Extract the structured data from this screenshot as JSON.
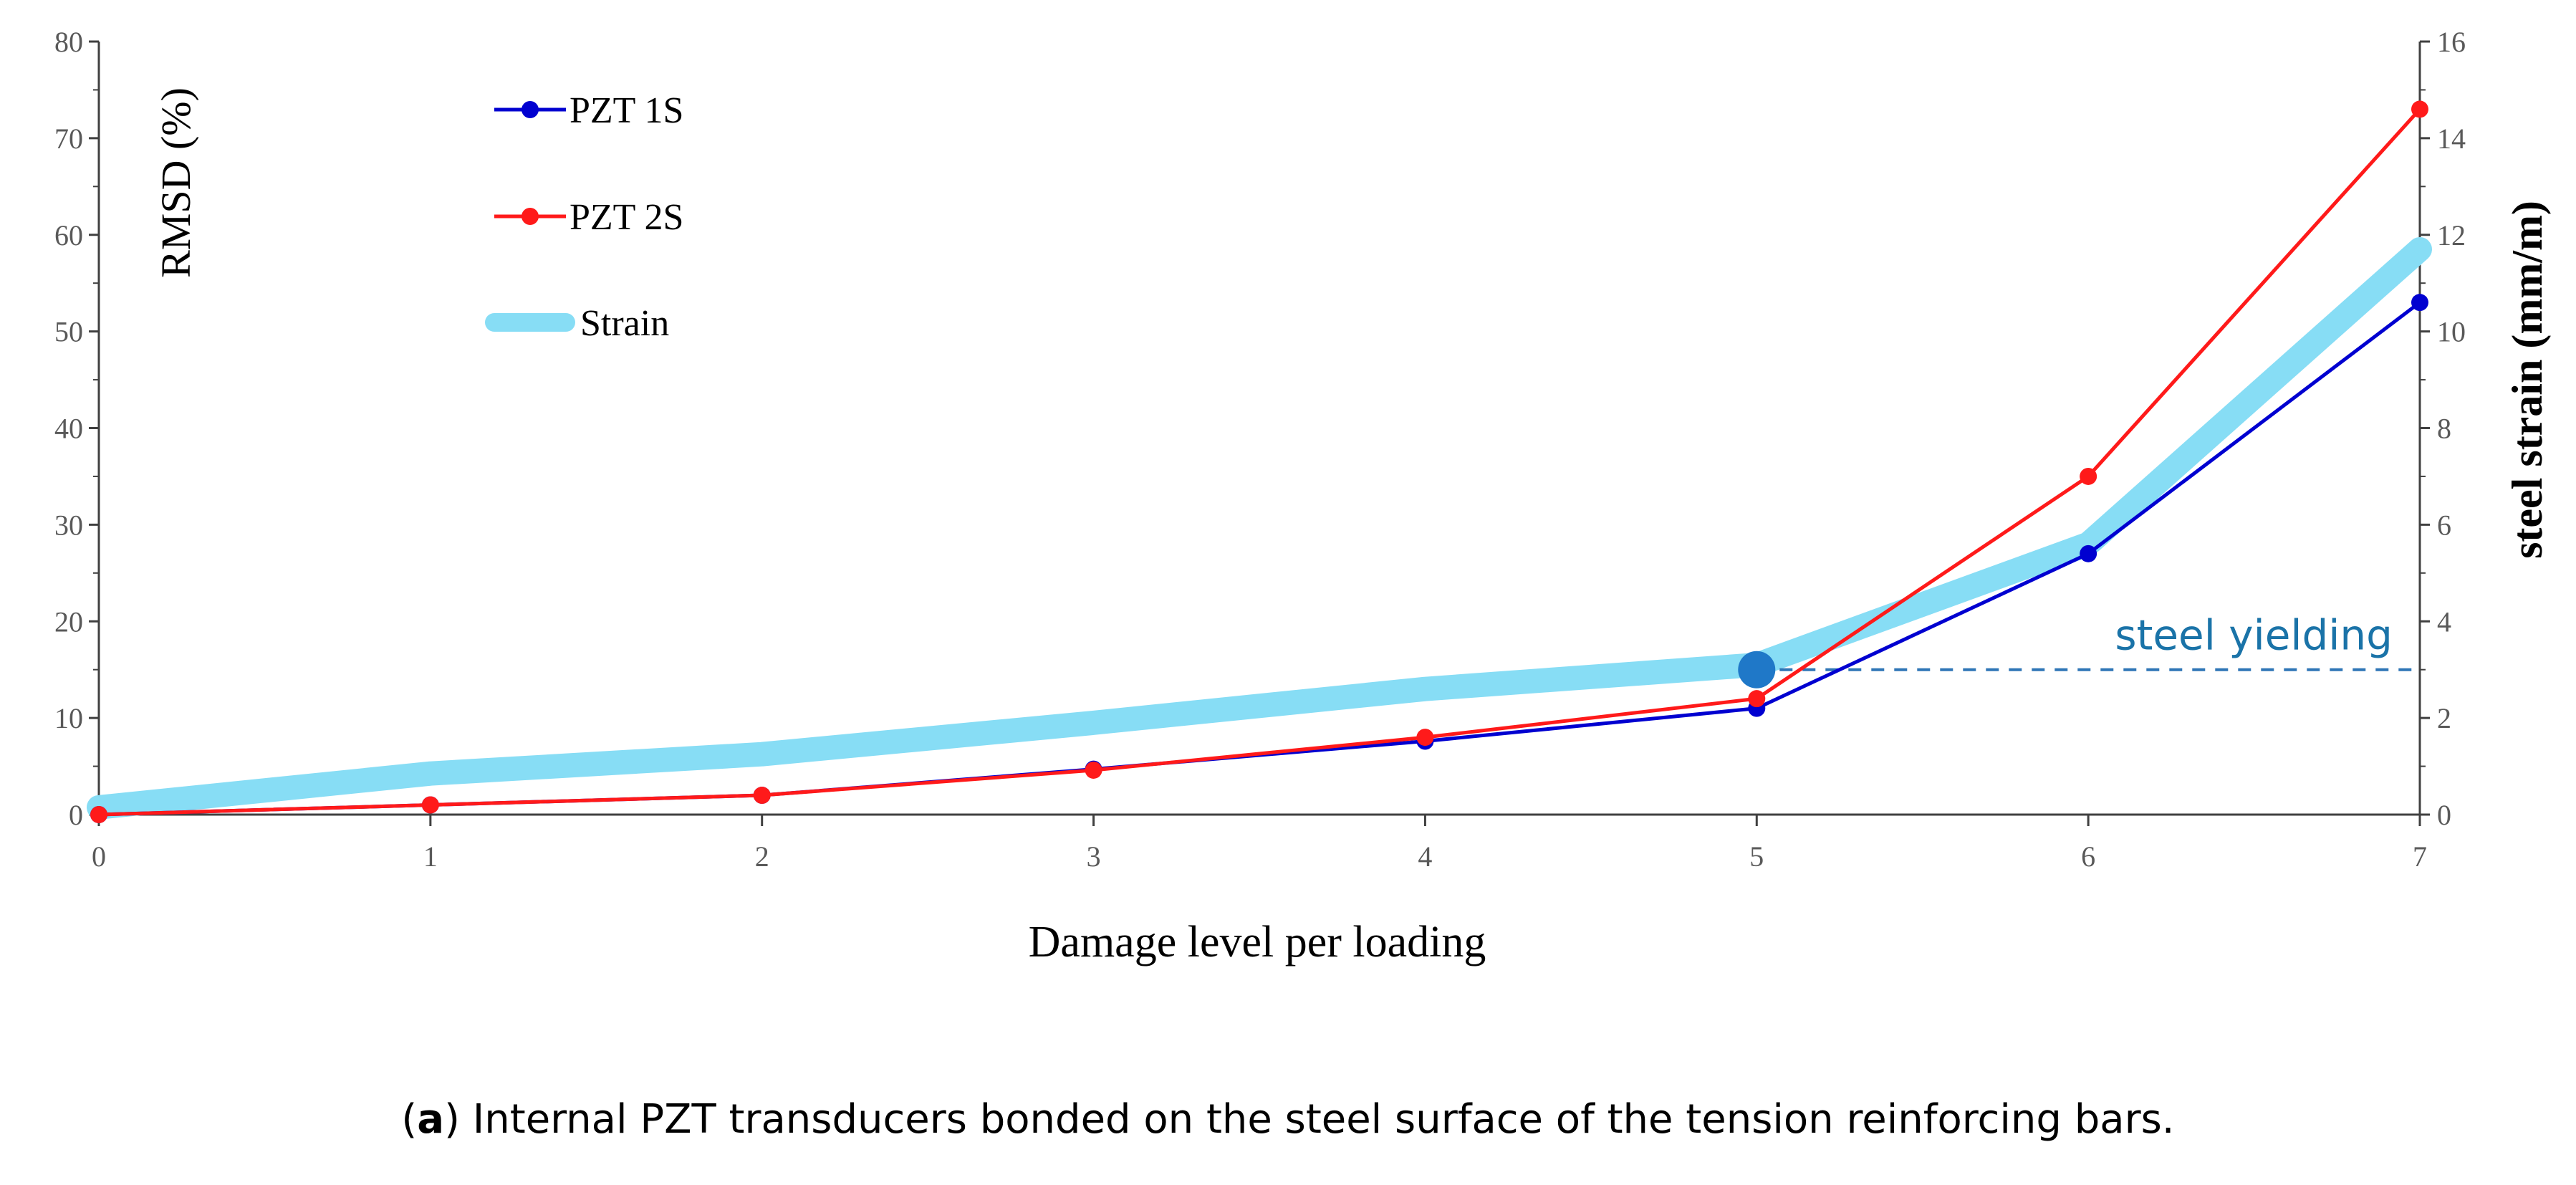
{
  "chart_data": {
    "type": "line",
    "title": "",
    "xlabel": "Damage level per loading",
    "ylabel": "RMSD (%)",
    "y2label": "steel strain (mm/m)",
    "x": [
      0,
      1,
      2,
      3,
      4,
      5,
      6,
      7
    ],
    "xlim": [
      0,
      7
    ],
    "ylim": [
      0,
      80
    ],
    "y2lim": [
      0,
      16
    ],
    "x_ticks": [
      "0",
      "1",
      "2",
      "3",
      "4",
      "5",
      "6",
      "7"
    ],
    "y_ticks": [
      "0",
      "10",
      "20",
      "30",
      "40",
      "50",
      "60",
      "70",
      "80"
    ],
    "y2_ticks": [
      "0",
      "2",
      "4",
      "6",
      "8",
      "10",
      "12",
      "14",
      "16"
    ],
    "series": [
      {
        "name": "PZT 1S",
        "axis": "left",
        "color": "#0000d0",
        "values": [
          0,
          1,
          2,
          4.7,
          7.6,
          11,
          27,
          53
        ]
      },
      {
        "name": "PZT 2S",
        "axis": "left",
        "color": "#ff1a1a",
        "values": [
          0,
          1,
          2,
          4.6,
          8,
          12,
          35,
          73
        ]
      },
      {
        "name": "Strain",
        "axis": "right",
        "color": "#87ddf5",
        "values": [
          0.15,
          0.85,
          1.25,
          1.9,
          2.6,
          3.1,
          5.6,
          11.7
        ]
      }
    ],
    "legend": {
      "position": "top-left",
      "labels": [
        "PZT 1S",
        "PZT 2S",
        "Strain"
      ]
    },
    "annotations": [
      {
        "text": "steel yielding",
        "color": "#1a73a8",
        "x": 5,
        "y2": 3.0,
        "line_from_x": 5,
        "line_to_x": 7
      }
    ]
  },
  "caption": {
    "label": "a",
    "text": " Internal PZT transducers bonded on the steel surface of the tension reinforcing bars."
  }
}
